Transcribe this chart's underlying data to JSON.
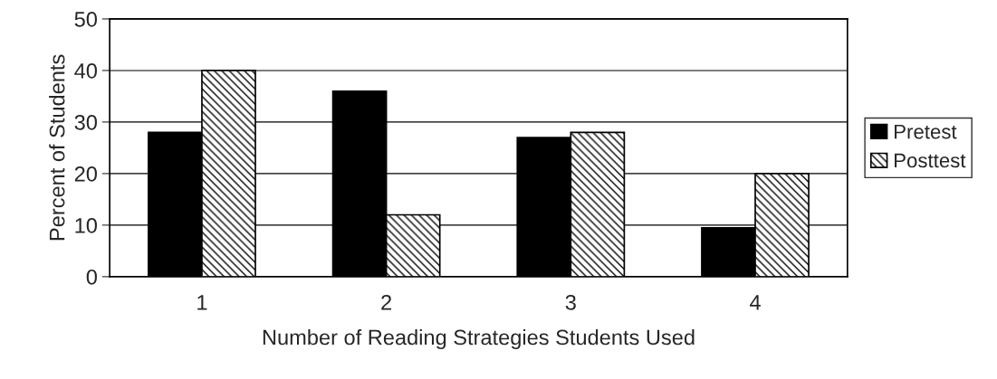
{
  "chart_data": {
    "type": "bar",
    "xlabel": "Number of Reading Strategies Students Used",
    "ylabel": "Percent of Students",
    "categories": [
      "1",
      "2",
      "3",
      "4"
    ],
    "series": [
      {
        "name": "Pretest",
        "color": "#000000",
        "values": [
          28,
          36,
          27,
          9.5
        ]
      },
      {
        "name": "Posttest",
        "color": "#000000",
        "values": [
          40,
          12,
          28,
          20
        ]
      }
    ],
    "ylim": [
      0,
      50
    ],
    "yticks": [
      0,
      10,
      20,
      30,
      40,
      50
    ],
    "grid": "y",
    "legend": "right"
  }
}
